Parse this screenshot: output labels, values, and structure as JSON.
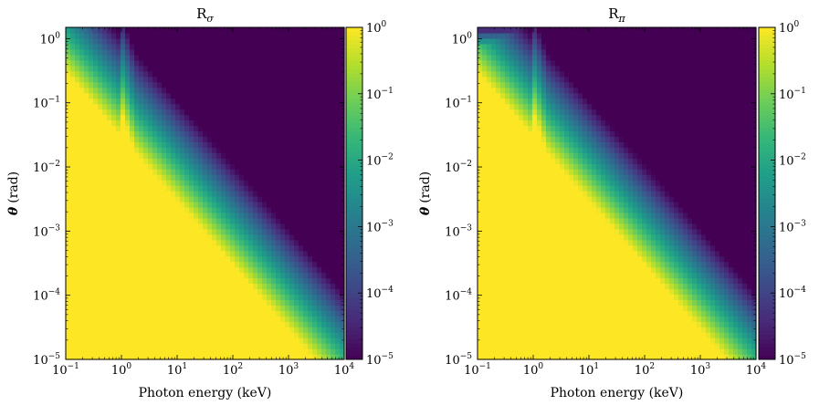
{
  "chart_data": [
    {
      "type": "heatmap",
      "title": "R",
      "title_subscript": "σ",
      "xlabel": "Photon energy (keV)",
      "ylabel_symbol": "θ",
      "ylabel_unit": "(rad)",
      "x_scale": "log",
      "y_scale": "log",
      "xlim": [
        0.1,
        10000
      ],
      "ylim": [
        1e-05,
        1.5
      ],
      "colorbar": {
        "scale": "log",
        "range": [
          1e-05,
          1
        ],
        "colormap": "viridis"
      },
      "x_ticks": [
        {
          "base": "10",
          "exp": "−1"
        },
        {
          "base": "10",
          "exp": "0"
        },
        {
          "base": "10",
          "exp": "1"
        },
        {
          "base": "10",
          "exp": "2"
        },
        {
          "base": "10",
          "exp": "3"
        },
        {
          "base": "10",
          "exp": "4"
        }
      ],
      "y_ticks": [
        {
          "base": "10",
          "exp": "−5"
        },
        {
          "base": "10",
          "exp": "−4"
        },
        {
          "base": "10",
          "exp": "−3"
        },
        {
          "base": "10",
          "exp": "−2"
        },
        {
          "base": "10",
          "exp": "−1"
        },
        {
          "base": "10",
          "exp": "0"
        }
      ],
      "cbar_ticks": [
        {
          "base": "10",
          "exp": "−5"
        },
        {
          "base": "10",
          "exp": "−4"
        },
        {
          "base": "10",
          "exp": "−3"
        },
        {
          "base": "10",
          "exp": "−2"
        },
        {
          "base": "10",
          "exp": "−1"
        },
        {
          "base": "10",
          "exp": "0"
        }
      ],
      "model": {
        "critical_angle_at_1keV_rad": 0.03,
        "roll_off_decades": 1.25,
        "edge_keV": 1.0,
        "low_angle_suppression": false
      }
    },
    {
      "type": "heatmap",
      "title": "R",
      "title_subscript": "π",
      "xlabel": "Photon energy (keV)",
      "ylabel_symbol": "θ",
      "ylabel_unit": "(rad)",
      "x_scale": "log",
      "y_scale": "log",
      "xlim": [
        0.1,
        10000
      ],
      "ylim": [
        1e-05,
        1.5
      ],
      "colorbar": {
        "scale": "log",
        "range": [
          1e-05,
          1
        ],
        "colormap": "viridis"
      },
      "x_ticks": [
        {
          "base": "10",
          "exp": "−1"
        },
        {
          "base": "10",
          "exp": "0"
        },
        {
          "base": "10",
          "exp": "1"
        },
        {
          "base": "10",
          "exp": "2"
        },
        {
          "base": "10",
          "exp": "3"
        },
        {
          "base": "10",
          "exp": "4"
        }
      ],
      "y_ticks": [
        {
          "base": "10",
          "exp": "−5"
        },
        {
          "base": "10",
          "exp": "−4"
        },
        {
          "base": "10",
          "exp": "−3"
        },
        {
          "base": "10",
          "exp": "−2"
        },
        {
          "base": "10",
          "exp": "−1"
        },
        {
          "base": "10",
          "exp": "0"
        }
      ],
      "cbar_ticks": [
        {
          "base": "10",
          "exp": "−5"
        },
        {
          "base": "10",
          "exp": "−4"
        },
        {
          "base": "10",
          "exp": "−3"
        },
        {
          "base": "10",
          "exp": "−2"
        },
        {
          "base": "10",
          "exp": "−1"
        },
        {
          "base": "10",
          "exp": "0"
        }
      ],
      "model": {
        "critical_angle_at_1keV_rad": 0.03,
        "roll_off_decades": 1.25,
        "edge_keV": 1.0,
        "low_angle_suppression": true
      }
    }
  ],
  "colors": {
    "colormap_stops": [
      "#440154",
      "#482878",
      "#3e4a89",
      "#31688e",
      "#26828e",
      "#1f9e89",
      "#35b779",
      "#6dcd59",
      "#b4de2c",
      "#fde725"
    ],
    "axis": "#000000",
    "background": "#ffffff"
  }
}
